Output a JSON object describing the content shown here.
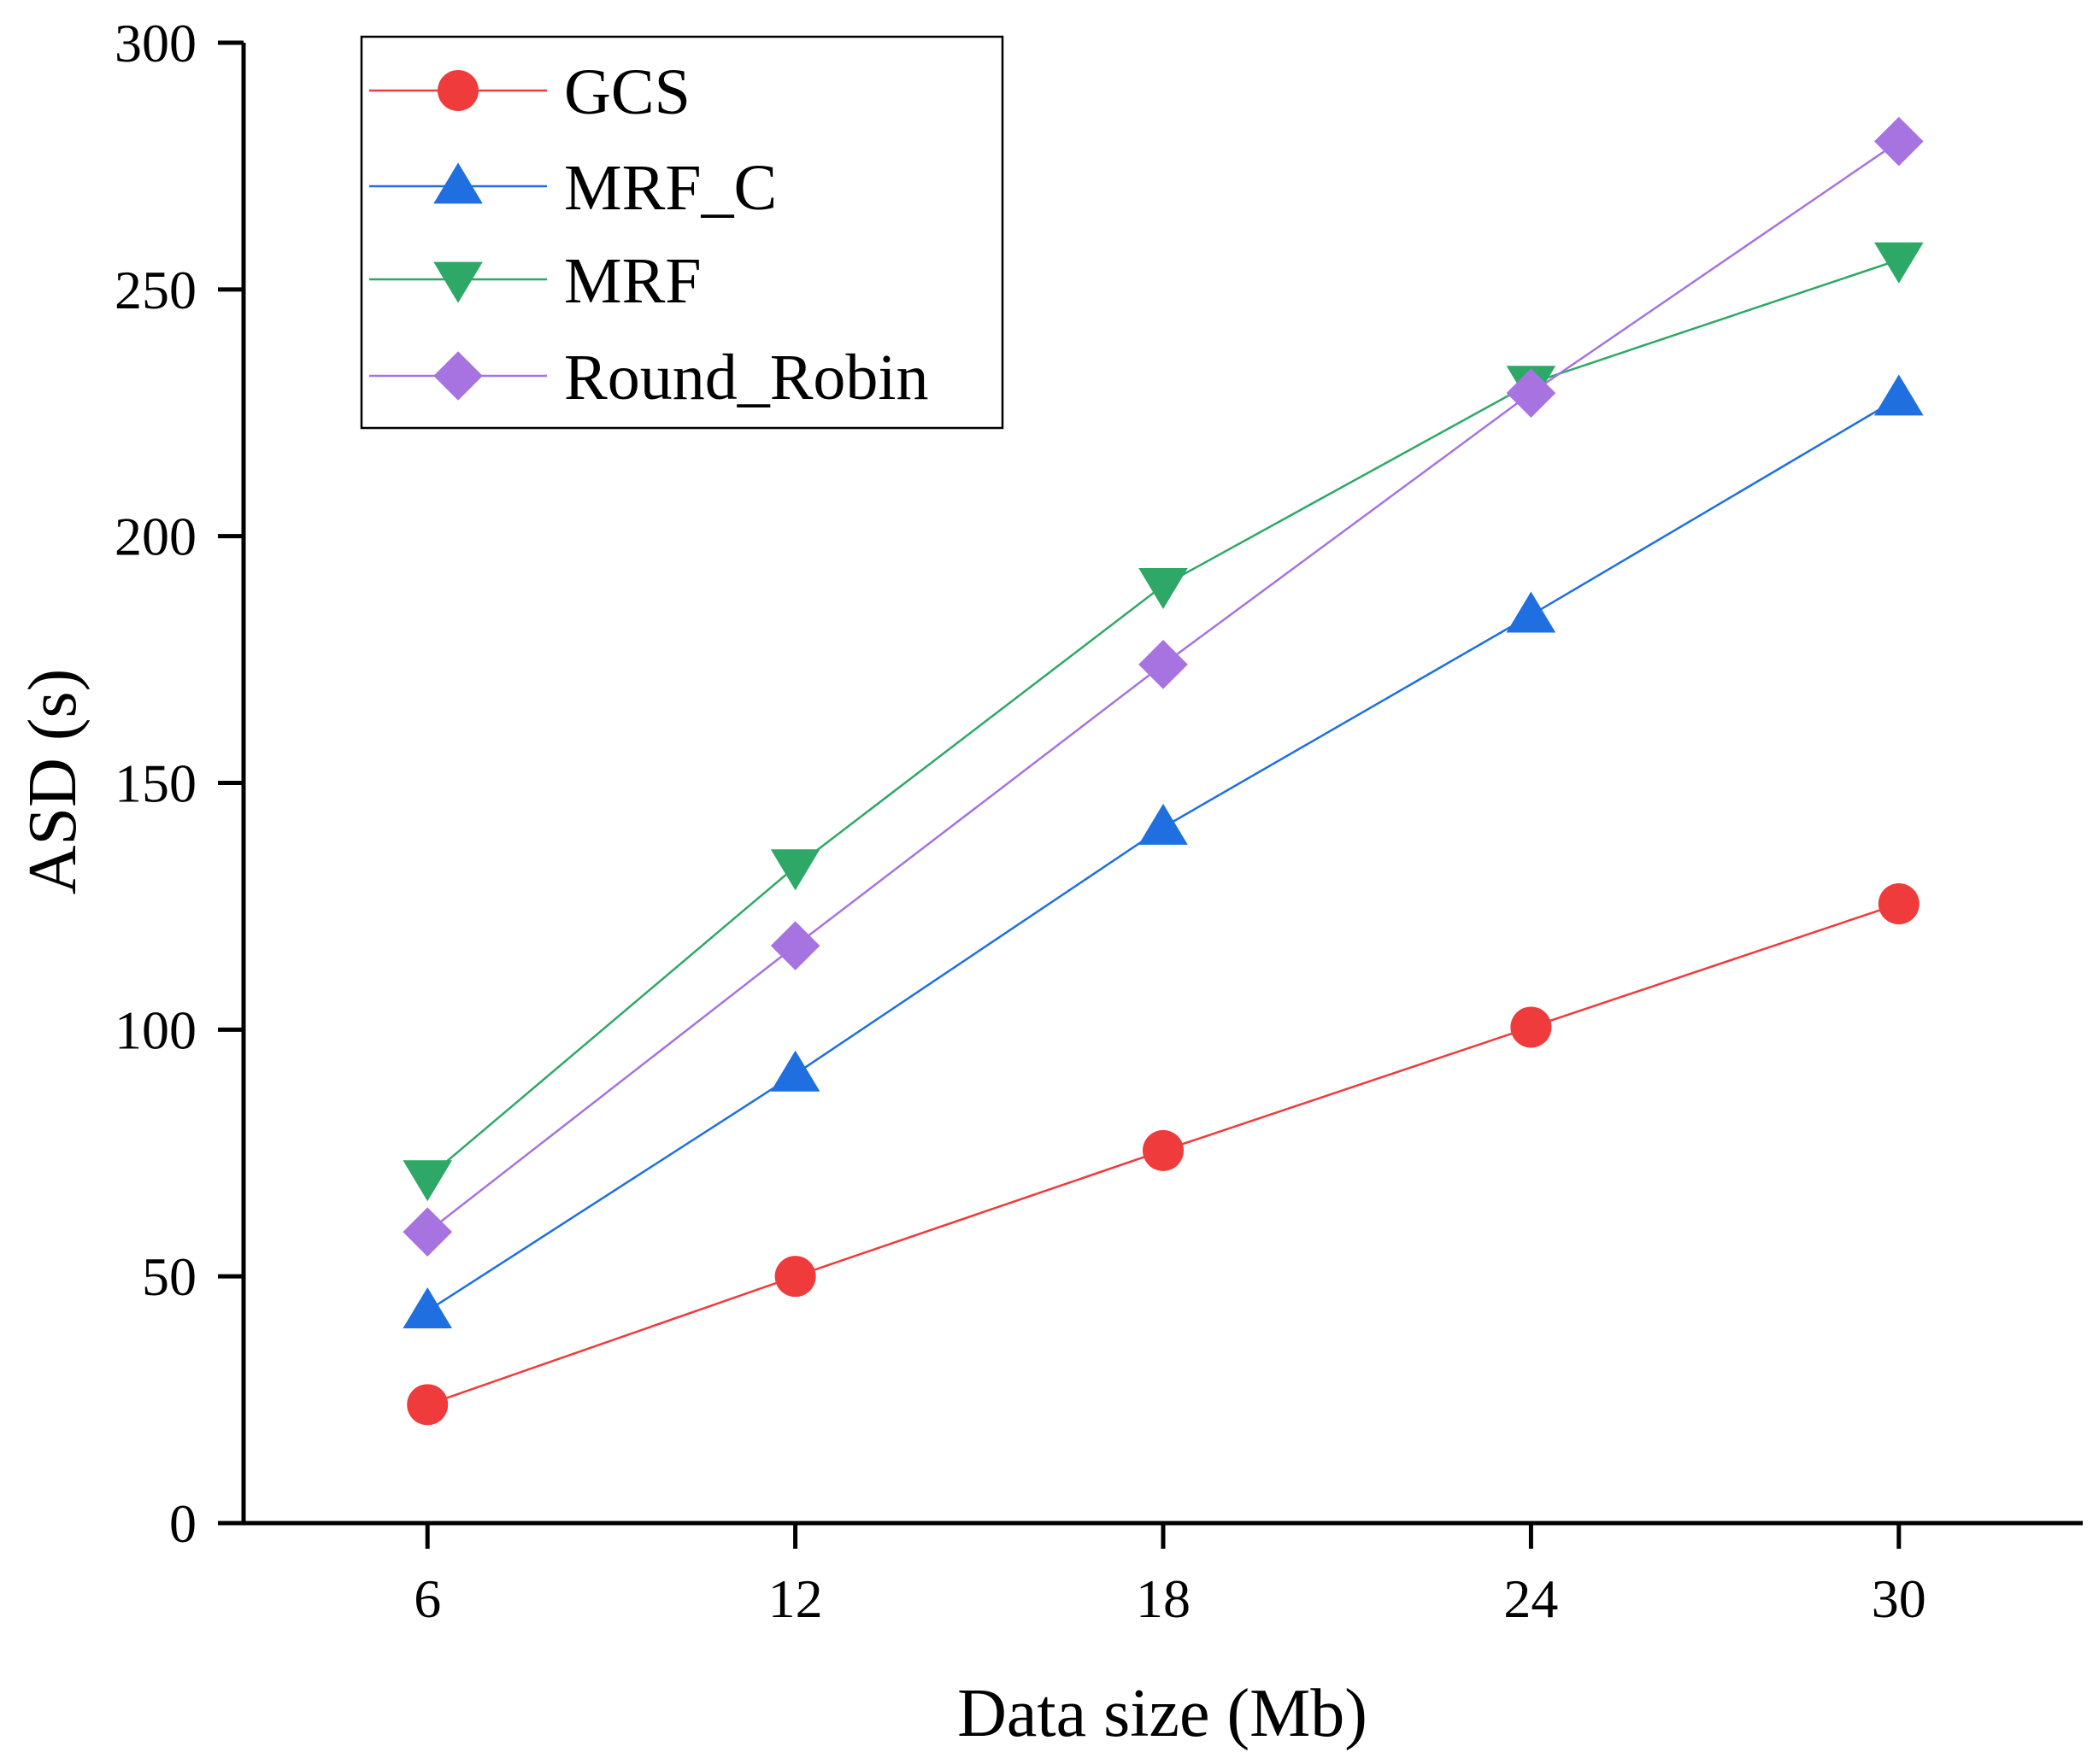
{
  "chart_data": {
    "type": "line",
    "title": "",
    "xlabel": "Data size (Mb)",
    "ylabel": "ASD (s)",
    "x": [
      6,
      12,
      18,
      24,
      30
    ],
    "x_tick_labels": [
      "6",
      "12",
      "18",
      "24",
      "30"
    ],
    "xlim": [
      3,
      33
    ],
    "ylim": [
      0,
      300
    ],
    "y_ticks": [
      0,
      50,
      100,
      150,
      200,
      250,
      300
    ],
    "y_tick_labels": [
      "0",
      "50",
      "100",
      "150",
      "200",
      "250",
      "300"
    ],
    "grid": false,
    "legend_position": "top-left",
    "series": [
      {
        "name": "GCS",
        "marker": "circle",
        "color": "#ef3b3b",
        "values": [
          24,
          50,
          75.5,
          100.5,
          125.5
        ]
      },
      {
        "name": "MRF_C",
        "marker": "triangle-up",
        "color": "#1f6fe0",
        "values": [
          43,
          91,
          141,
          184,
          228
        ]
      },
      {
        "name": "MRF",
        "marker": "triangle-down",
        "color": "#2ea866",
        "values": [
          70,
          133,
          190,
          231,
          256
        ]
      },
      {
        "name": "Round_Robin",
        "marker": "diamond",
        "color": "#a773e0",
        "values": [
          59,
          117,
          174,
          229,
          280
        ]
      }
    ]
  }
}
